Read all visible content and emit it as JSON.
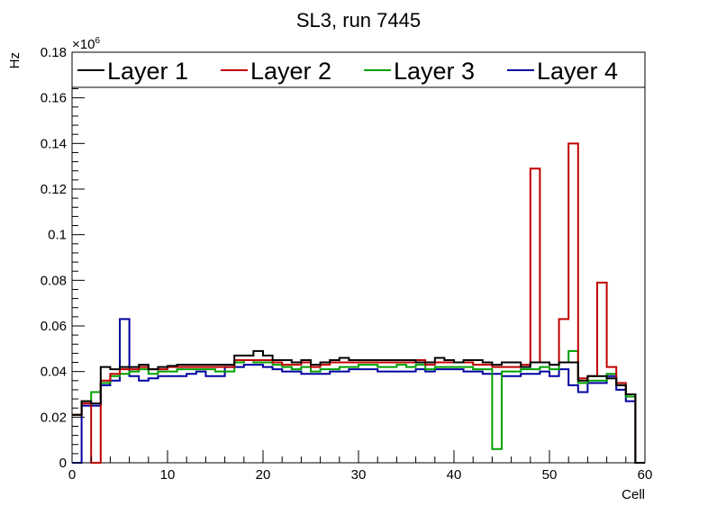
{
  "chart_data": {
    "type": "line",
    "style": "step-histogram",
    "title": "SL3, run 7445",
    "xlabel": "Cell",
    "ylabel": "Hz",
    "y_multiplier": "×10",
    "y_multiplier_exponent": "6",
    "xlim": [
      0,
      60
    ],
    "ylim": [
      0,
      0.18
    ],
    "x_ticks": [
      0,
      10,
      20,
      30,
      40,
      50,
      60
    ],
    "x_tick_labels": [
      "0",
      "10",
      "20",
      "30",
      "40",
      "50",
      "60"
    ],
    "y_ticks": [
      0,
      0.02,
      0.04,
      0.06,
      0.08,
      0.1,
      0.12,
      0.14,
      0.16,
      0.18
    ],
    "y_tick_labels": [
      "0",
      "0.02",
      "0.04",
      "0.06",
      "0.08",
      "0.1",
      "0.12",
      "0.14",
      "0.16",
      "0.18"
    ],
    "grid": false,
    "legend_position": "top, full width, single row",
    "bin_edges_start": 0,
    "bin_width": 1,
    "series": [
      {
        "name": "Layer 1",
        "color": "#000000",
        "values": [
          0.021,
          0.027,
          0.026,
          0.042,
          0.041,
          0.042,
          0.042,
          0.043,
          0.041,
          0.042,
          0.0425,
          0.043,
          0.043,
          0.043,
          0.043,
          0.043,
          0.043,
          0.047,
          0.047,
          0.049,
          0.047,
          0.045,
          0.045,
          0.044,
          0.045,
          0.043,
          0.044,
          0.045,
          0.046,
          0.045,
          0.045,
          0.045,
          0.045,
          0.045,
          0.045,
          0.045,
          0.044,
          0.044,
          0.046,
          0.045,
          0.044,
          0.045,
          0.045,
          0.044,
          0.043,
          0.044,
          0.044,
          0.042,
          0.044,
          0.044,
          0.043,
          0.044,
          0.044,
          0.036,
          0.038,
          0.038,
          0.037,
          0.034,
          0.03,
          0
        ]
      },
      {
        "name": "Layer 2",
        "color": "#c00000",
        "values": [
          0.021,
          0.026,
          0,
          0.036,
          0.039,
          0.041,
          0.041,
          0.042,
          0.041,
          0.041,
          0.042,
          0.042,
          0.042,
          0.042,
          0.042,
          0.042,
          0.042,
          0.045,
          0.045,
          0.045,
          0.045,
          0.044,
          0.043,
          0.043,
          0.044,
          0.042,
          0.043,
          0.044,
          0.044,
          0.044,
          0.044,
          0.044,
          0.044,
          0.044,
          0.044,
          0.044,
          0.045,
          0.043,
          0.044,
          0.044,
          0.044,
          0.044,
          0.043,
          0.043,
          0.042,
          0.042,
          0.042,
          0.043,
          0.129,
          0.044,
          0.043,
          0.063,
          0.14,
          0.037,
          0.038,
          0.079,
          0.042,
          0.035,
          0.03,
          0
        ]
      },
      {
        "name": "Layer 3",
        "color": "#00a000",
        "values": [
          0.021,
          0.027,
          0.031,
          0.035,
          0.038,
          0.039,
          0.04,
          0.041,
          0.039,
          0.04,
          0.04,
          0.041,
          0.041,
          0.041,
          0.041,
          0.04,
          0.04,
          0.044,
          0.045,
          0.044,
          0.044,
          0.043,
          0.042,
          0.041,
          0.042,
          0.04,
          0.041,
          0.041,
          0.042,
          0.042,
          0.043,
          0.043,
          0.042,
          0.042,
          0.043,
          0.042,
          0.043,
          0.041,
          0.042,
          0.042,
          0.042,
          0.042,
          0.041,
          0.041,
          0.006,
          0.04,
          0.04,
          0.041,
          0.041,
          0.042,
          0.041,
          0.044,
          0.049,
          0.035,
          0.036,
          0.036,
          0.039,
          0.034,
          0.029,
          0
        ]
      },
      {
        "name": "Layer 4",
        "color": "#0000a0",
        "values": [
          0,
          0.025,
          0.025,
          0.034,
          0.036,
          0.063,
          0.038,
          0.036,
          0.037,
          0.038,
          0.038,
          0.038,
          0.039,
          0.04,
          0.038,
          0.038,
          0.042,
          0.042,
          0.043,
          0.043,
          0.042,
          0.041,
          0.04,
          0.04,
          0.039,
          0.039,
          0.039,
          0.04,
          0.04,
          0.041,
          0.041,
          0.041,
          0.04,
          0.04,
          0.04,
          0.04,
          0.041,
          0.04,
          0.041,
          0.041,
          0.041,
          0.04,
          0.04,
          0.039,
          0.039,
          0.038,
          0.038,
          0.039,
          0.039,
          0.04,
          0.038,
          0.041,
          0.034,
          0.031,
          0.035,
          0.035,
          0.038,
          0.032,
          0.027,
          0
        ]
      }
    ]
  }
}
